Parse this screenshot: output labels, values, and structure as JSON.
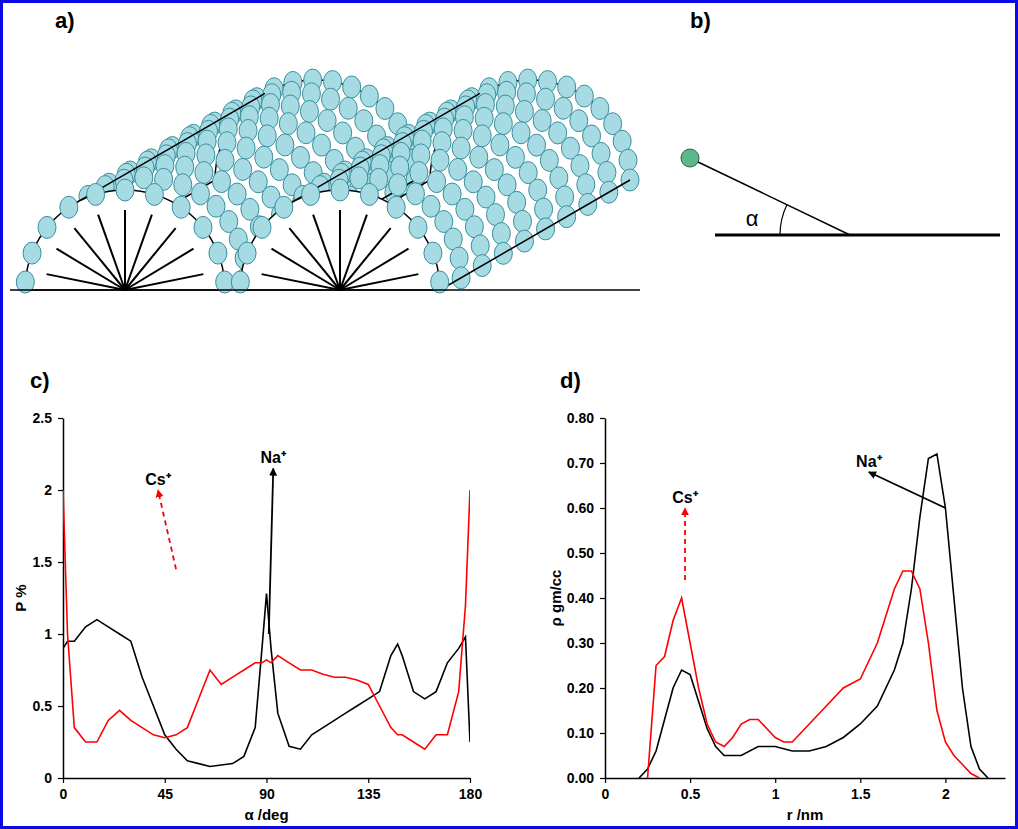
{
  "panel_letters": [
    "a)",
    "b)",
    "c)",
    "d)"
  ],
  "diagram_b": {
    "angle_label": "α"
  },
  "chart_data": [
    {
      "type": "line",
      "x_label": "α /deg",
      "y_label": "P %",
      "xlim": [
        0,
        180
      ],
      "xticks": [
        0,
        45,
        90,
        135,
        180
      ],
      "ylim": [
        0,
        2.5
      ],
      "yticks": [
        0,
        0.5,
        1,
        1.5,
        2,
        2.5
      ],
      "x": [
        0,
        2,
        5,
        10,
        15,
        20,
        25,
        30,
        35,
        40,
        45,
        50,
        55,
        60,
        65,
        70,
        75,
        80,
        85,
        88,
        90,
        92,
        95,
        100,
        105,
        110,
        115,
        120,
        125,
        130,
        135,
        140,
        145,
        148,
        150,
        155,
        160,
        165,
        170,
        175,
        178,
        180
      ],
      "series": [
        {
          "color": "#000000",
          "values": [
            0.9,
            0.95,
            0.95,
            1.05,
            1.1,
            1.05,
            1.0,
            0.95,
            0.7,
            0.5,
            0.3,
            0.2,
            0.12,
            0.1,
            0.08,
            0.09,
            0.1,
            0.15,
            0.35,
            0.9,
            1.28,
            0.9,
            0.45,
            0.22,
            0.2,
            0.3,
            0.35,
            0.4,
            0.45,
            0.5,
            0.55,
            0.6,
            0.85,
            0.93,
            0.85,
            0.6,
            0.55,
            0.6,
            0.8,
            0.9,
            0.98,
            0.25
          ]
        },
        {
          "color": "#ff0000",
          "values": [
            2.0,
            1.0,
            0.35,
            0.25,
            0.25,
            0.4,
            0.47,
            0.4,
            0.35,
            0.3,
            0.28,
            0.3,
            0.35,
            0.55,
            0.75,
            0.65,
            0.7,
            0.75,
            0.8,
            0.8,
            0.82,
            0.8,
            0.85,
            0.8,
            0.75,
            0.75,
            0.72,
            0.7,
            0.7,
            0.68,
            0.65,
            0.5,
            0.35,
            0.3,
            0.3,
            0.25,
            0.2,
            0.3,
            0.3,
            0.6,
            1.2,
            2.0
          ]
        }
      ],
      "annotations": [
        {
          "text": "Na⁺",
          "x": 93,
          "y": 2.15,
          "arrow_from": [
            91,
            1.0
          ],
          "color": "#000000",
          "line_style": "solid"
        },
        {
          "text": "Cs⁺",
          "x": 42,
          "y": 2.0,
          "arrow_from": [
            50,
            1.45
          ],
          "color": "#ff0000",
          "line_style": "dashed"
        }
      ]
    },
    {
      "type": "line",
      "x_label": "r /nm",
      "y_label": "ρ gm/cc",
      "xlim": [
        0,
        2.35
      ],
      "xticks": [
        0,
        0.5,
        1,
        1.5,
        2
      ],
      "ylim": [
        0,
        0.8
      ],
      "yticks": [
        {
          "value": 0,
          "label": "0.00"
        },
        {
          "value": 0.1,
          "label": "0.10"
        },
        {
          "value": 0.2,
          "label": "0.20"
        },
        {
          "value": 0.3,
          "label": "0.30"
        },
        {
          "value": 0.4,
          "label": "0.40"
        },
        {
          "value": 0.5,
          "label": "0.50"
        },
        {
          "value": 0.6,
          "label": "0.60"
        },
        {
          "value": 0.7,
          "label": "0.70"
        },
        {
          "value": 0.8,
          "label": "0.80"
        }
      ],
      "series": [
        {
          "color": "#000000",
          "x": [
            0.2,
            0.25,
            0.3,
            0.35,
            0.4,
            0.45,
            0.5,
            0.55,
            0.6,
            0.65,
            0.7,
            0.75,
            0.8,
            0.9,
            1.0,
            1.1,
            1.2,
            1.3,
            1.4,
            1.5,
            1.6,
            1.7,
            1.75,
            1.8,
            1.85,
            1.9,
            1.95,
            2.0,
            2.05,
            2.1,
            2.15,
            2.2,
            2.25
          ],
          "values": [
            0,
            0.02,
            0.06,
            0.13,
            0.2,
            0.24,
            0.23,
            0.17,
            0.11,
            0.07,
            0.05,
            0.05,
            0.05,
            0.07,
            0.07,
            0.06,
            0.06,
            0.07,
            0.09,
            0.12,
            0.16,
            0.24,
            0.3,
            0.42,
            0.58,
            0.71,
            0.72,
            0.6,
            0.4,
            0.2,
            0.07,
            0.02,
            0
          ]
        },
        {
          "color": "#ff0000",
          "x": [
            0.25,
            0.3,
            0.35,
            0.4,
            0.45,
            0.5,
            0.55,
            0.6,
            0.65,
            0.7,
            0.75,
            0.8,
            0.85,
            0.9,
            0.95,
            1.0,
            1.05,
            1.1,
            1.2,
            1.3,
            1.4,
            1.5,
            1.6,
            1.65,
            1.7,
            1.75,
            1.8,
            1.85,
            1.9,
            1.95,
            2.0,
            2.05,
            2.1,
            2.15,
            2.2
          ],
          "values": [
            0,
            0.25,
            0.27,
            0.35,
            0.4,
            0.3,
            0.2,
            0.12,
            0.08,
            0.07,
            0.09,
            0.12,
            0.13,
            0.13,
            0.11,
            0.09,
            0.08,
            0.08,
            0.12,
            0.16,
            0.2,
            0.22,
            0.3,
            0.36,
            0.42,
            0.46,
            0.46,
            0.42,
            0.3,
            0.15,
            0.08,
            0.05,
            0.03,
            0.01,
            0
          ]
        }
      ],
      "annotations": [
        {
          "text": "Na⁺",
          "x": 1.55,
          "y": 0.68,
          "arrow_from": [
            2.0,
            0.6
          ],
          "color": "#000000",
          "line_style": "solid"
        },
        {
          "text": "Cs⁺",
          "x": 0.47,
          "y": 0.6,
          "arrow_from": [
            0.47,
            0.44
          ],
          "color": "#ff0000",
          "line_style": "dashed"
        }
      ]
    }
  ]
}
